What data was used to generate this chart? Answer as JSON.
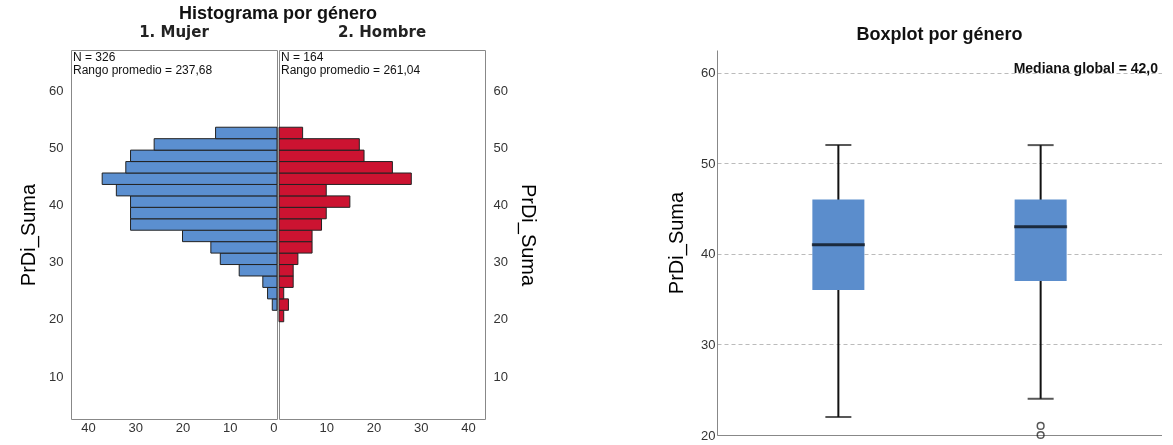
{
  "chart_data": [
    {
      "type": "histogram",
      "title": "Histograma por género",
      "subtitle": "1. Mujer",
      "ylabel": "PrDi_Suma",
      "orientation": "horizontal",
      "color": "#5b8fd0",
      "bins": [
        21.5,
        23.5,
        25.5,
        27.5,
        29.5,
        31.5,
        33.5,
        35.5,
        37.5,
        39.5,
        41.5,
        43.5,
        45.5,
        47.5,
        49.5,
        51.5,
        53.5
      ],
      "values": [
        1,
        2,
        3,
        8,
        12,
        14,
        20,
        31,
        31,
        31,
        34,
        37,
        32,
        31,
        26,
        13
      ],
      "xlim": [
        43.6,
        0
      ],
      "xticks": [
        40,
        30,
        20,
        10,
        0
      ],
      "ylim": [
        2.5,
        67
      ],
      "yticks": [
        10,
        20,
        30,
        40,
        50,
        60
      ],
      "annotations": [
        "N = 326",
        "Rango promedio = 237,68"
      ]
    },
    {
      "type": "histogram",
      "subtitle": "2. Hombre",
      "ylabel": "PrDi_Suma",
      "orientation": "horizontal",
      "color": "#cc1331",
      "bins": [
        19.5,
        21.5,
        23.5,
        25.5,
        27.5,
        29.5,
        31.5,
        33.5,
        35.5,
        37.5,
        39.5,
        41.5,
        43.5,
        45.5,
        47.5,
        49.5,
        51.5,
        53.5
      ],
      "values": [
        1,
        2,
        1,
        3,
        3,
        4,
        7,
        7,
        9,
        10,
        15,
        10,
        28,
        24,
        18,
        17,
        5
      ],
      "xlim": [
        0,
        43.6
      ],
      "xticks": [
        10,
        20,
        30,
        40
      ],
      "ylim": [
        2.5,
        67
      ],
      "yticks": [
        10,
        20,
        30,
        40,
        50,
        60
      ],
      "annotations": [
        "N = 164",
        "Rango promedio = 261,04"
      ]
    },
    {
      "type": "box",
      "title": "Boxplot por género",
      "ylabel": "PrDi_Suma",
      "categories": [
        null,
        null
      ],
      "color": "#5b8dcc",
      "boxes": [
        {
          "low": 22,
          "q1": 36,
          "median": 41,
          "q3": 46,
          "high": 52
        },
        {
          "low": 24,
          "q1": 37,
          "median": 43,
          "q3": 46,
          "high": 52,
          "outliers": [
            21,
            20
          ]
        }
      ],
      "ylim": [
        20,
        62.5
      ],
      "yticks": [
        20,
        30,
        40,
        50,
        60
      ],
      "grid": "y",
      "annotations": [
        "Mediana global = 42,0"
      ]
    }
  ]
}
